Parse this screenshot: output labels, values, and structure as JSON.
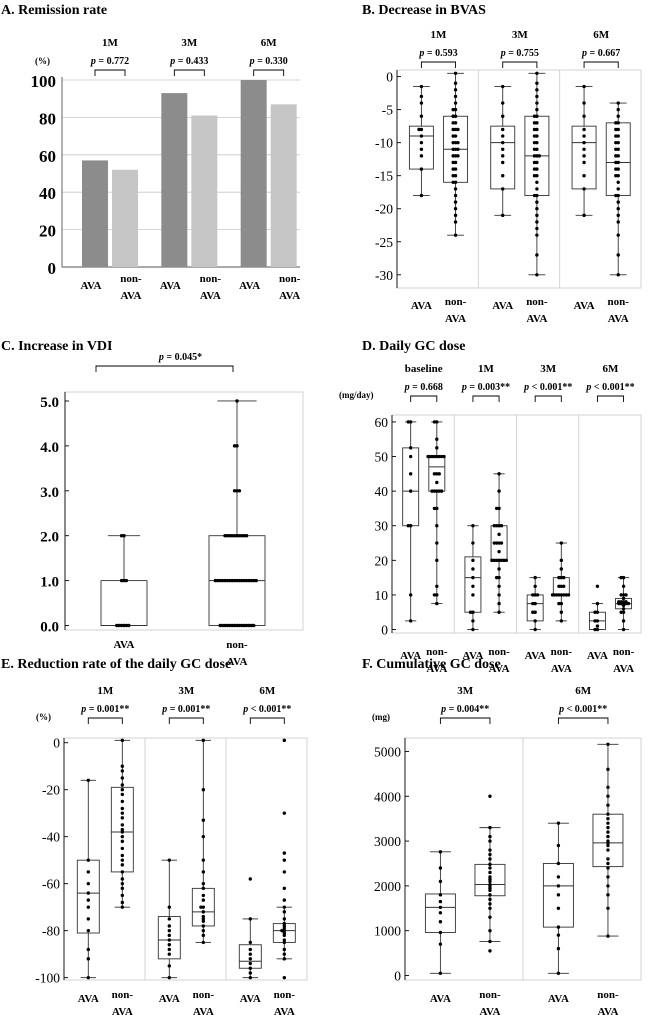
{
  "figure": {
    "panels": [
      {
        "id": "A",
        "title": "A. Remission rate",
        "unit": "(%)"
      },
      {
        "id": "B",
        "title": "B. Decrease in BVAS",
        "unit": ""
      },
      {
        "id": "C",
        "title": "C. Increase in VDI",
        "unit": ""
      },
      {
        "id": "D",
        "title": "D. Daily GC dose",
        "unit": "(mg/day)"
      },
      {
        "id": "E",
        "title": "E. Reduction rate of the daily GC dose",
        "unit": "(%)"
      },
      {
        "id": "F",
        "title": "F. Cumulative GC dose",
        "unit": "(mg)"
      }
    ],
    "colors": {
      "ava_bar": "#8c8c8c",
      "non_ava_bar": "#c6c6c6",
      "grid": "#c8c8c8",
      "frame": "#cfcfcf",
      "box": "#333333",
      "dot": "#000000"
    }
  },
  "chart_data": [
    {
      "id": "A",
      "type": "bar",
      "title": "A. Remission rate",
      "ylabel": "(%)",
      "ylim": [
        0,
        100
      ],
      "yticks": [
        "0",
        "20",
        "40",
        "60",
        "80",
        "100"
      ],
      "groups": [
        {
          "label": "1M",
          "p": "p = 0.772",
          "ava": 57,
          "non_ava": 52
        },
        {
          "label": "3M",
          "p": "p = 0.433",
          "ava": 93,
          "non_ava": 81
        },
        {
          "label": "6M",
          "p": "p = 0.330",
          "ava": 100,
          "non_ava": 87
        }
      ],
      "categories": [
        "AVA",
        "non-AVA"
      ]
    },
    {
      "id": "B",
      "type": "box",
      "title": "B. Decrease in BVAS",
      "ylim": [
        -32,
        1
      ],
      "yticks": [
        "0",
        "-5",
        "-10",
        "-15",
        "-20",
        "-25",
        "-30"
      ],
      "groups": [
        {
          "label": "1M",
          "p": "p = 0.593",
          "ava": {
            "min": -18,
            "q1": -14,
            "median": -9,
            "q3": -7.5,
            "max": -1.5,
            "points": [
              -1.5,
              -3,
              -4,
              -6,
              -8,
              -8,
              -9,
              -10,
              -11,
              -12,
              -14,
              -18
            ]
          },
          "non_ava": {
            "min": -24,
            "q1": -16,
            "median": -11,
            "q3": -6,
            "max": 0.5,
            "points": [
              0.5,
              -1,
              -2,
              -3,
              -4,
              -5,
              -5,
              -6,
              -6,
              -7,
              -7,
              -8,
              -8,
              -8,
              -9,
              -9,
              -10,
              -10,
              -10,
              -11,
              -11,
              -11,
              -12,
              -12,
              -12,
              -13,
              -13,
              -14,
              -14,
              -15,
              -15,
              -16,
              -16,
              -17,
              -18,
              -19,
              -20,
              -21,
              -22,
              -24
            ]
          }
        },
        {
          "label": "3M",
          "p": "p = 0.755",
          "ava": {
            "min": -21,
            "q1": -17,
            "median": -10,
            "q3": -7.5,
            "max": -1.5,
            "points": [
              -1.5,
              -4,
              -6,
              -8,
              -9,
              -10,
              -11,
              -12,
              -13,
              -15,
              -17,
              -21
            ]
          },
          "non_ava": {
            "min": -30,
            "q1": -18,
            "median": -12,
            "q3": -6,
            "max": 0.5,
            "points": [
              0.5,
              -1,
              -2,
              -3,
              -4,
              -5,
              -6,
              -6,
              -7,
              -7,
              -8,
              -8,
              -9,
              -9,
              -10,
              -10,
              -11,
              -11,
              -12,
              -12,
              -12,
              -13,
              -13,
              -14,
              -14,
              -15,
              -15,
              -16,
              -17,
              -18,
              -18,
              -19,
              -20,
              -21,
              -22,
              -23,
              -24,
              -27,
              -30
            ]
          }
        },
        {
          "label": "6M",
          "p": "p = 0.667",
          "ava": {
            "min": -21,
            "q1": -17,
            "median": -10,
            "q3": -7.5,
            "max": -1.5,
            "points": [
              -1.5,
              -4,
              -6,
              -8,
              -9,
              -10,
              -11,
              -12,
              -13,
              -15,
              -17,
              -21
            ]
          },
          "non_ava": {
            "min": -30,
            "q1": -18,
            "median": -13,
            "q3": -7,
            "max": -4,
            "points": [
              -4,
              -5,
              -6,
              -7,
              -7,
              -8,
              -8,
              -9,
              -9,
              -10,
              -10,
              -11,
              -11,
              -12,
              -12,
              -13,
              -13,
              -14,
              -14,
              -15,
              -15,
              -16,
              -17,
              -18,
              -18,
              -19,
              -20,
              -21,
              -22,
              -24,
              -27,
              -30
            ]
          }
        }
      ],
      "categories": [
        "AVA",
        "non-AVA"
      ]
    },
    {
      "id": "C",
      "type": "box",
      "title": "C. Increase in VDI",
      "ylim": [
        -0.1,
        5.2
      ],
      "yticks": [
        "0.0",
        "1.0",
        "2.0",
        "3.0",
        "4.0",
        "5.0"
      ],
      "p": "p = 0.045*",
      "ava": {
        "min": 0,
        "q1": 0,
        "median": 0,
        "q3": 1,
        "max": 2,
        "points": [
          0,
          0,
          0,
          0,
          0,
          0,
          1,
          1,
          1,
          2,
          2
        ]
      },
      "non_ava": {
        "min": 0,
        "q1": 0,
        "median": 1,
        "q3": 2,
        "max": 5,
        "points": [
          0,
          0,
          0,
          0,
          0,
          0,
          0,
          0,
          0,
          0,
          0,
          0,
          0,
          0,
          0,
          1,
          1,
          1,
          1,
          1,
          1,
          1,
          1,
          1,
          1,
          1,
          1,
          1,
          1,
          1,
          1,
          1,
          1,
          2,
          2,
          2,
          2,
          2,
          2,
          2,
          2,
          2,
          2,
          3,
          3,
          3,
          4,
          4,
          5
        ]
      },
      "categories": [
        "AVA",
        "non-AVA"
      ]
    },
    {
      "id": "D",
      "type": "box",
      "title": "D. Daily GC dose",
      "ylabel": "(mg/day)",
      "ylim": [
        -1,
        62
      ],
      "yticks": [
        "0",
        "10",
        "20",
        "30",
        "40",
        "50",
        "60"
      ],
      "groups": [
        {
          "label": "baseline",
          "p": "p = 0.668",
          "ava": {
            "min": 2.5,
            "q1": 30,
            "median": 40,
            "q3": 52.5,
            "max": 60,
            "points": [
              2.5,
              10,
              30,
              30,
              40,
              45,
              50,
              52.5,
              60,
              60
            ]
          },
          "non_ava": {
            "min": 7.5,
            "q1": 40,
            "median": 47,
            "q3": 50,
            "max": 60,
            "points": [
              7.5,
              10,
              10,
              12.5,
              20,
              25,
              30,
              35,
              35,
              40,
              40,
              40,
              40,
              40,
              42.5,
              45,
              45,
              45,
              50,
              50,
              50,
              50,
              50,
              50,
              50,
              50,
              52.5,
              55,
              60,
              60
            ]
          }
        },
        {
          "label": "1M",
          "p": "p = 0.003**",
          "ava": {
            "min": 0,
            "q1": 5,
            "median": 15,
            "q3": 21,
            "max": 30,
            "points": [
              0,
              2.5,
              5,
              5,
              10,
              12.5,
              15,
              17.5,
              20,
              25,
              30
            ]
          },
          "non_ava": {
            "min": 5,
            "q1": 20,
            "median": 20,
            "q3": 30,
            "max": 45,
            "points": [
              5,
              7.5,
              10,
              12.5,
              15,
              15,
              17.5,
              20,
              20,
              20,
              20,
              20,
              20,
              20,
              22.5,
              25,
              25,
              25,
              25,
              27.5,
              30,
              30,
              30,
              30,
              35,
              35,
              40,
              45
            ]
          }
        },
        {
          "label": "3M",
          "p": "p < 0.001**",
          "ava": {
            "min": 0,
            "q1": 2.5,
            "median": 7.5,
            "q3": 10,
            "max": 15,
            "points": [
              0,
              2.5,
              5,
              5,
              7.5,
              7.5,
              10,
              10,
              10,
              12.5,
              15
            ]
          },
          "non_ava": {
            "min": 2.5,
            "q1": 10,
            "median": 10,
            "q3": 15,
            "max": 25,
            "points": [
              2.5,
              5,
              7.5,
              7.5,
              10,
              10,
              10,
              10,
              10,
              10,
              10,
              10,
              12.5,
              12.5,
              12.5,
              15,
              15,
              15,
              17.5,
              20,
              25
            ]
          }
        },
        {
          "label": "6M",
          "p": "p < 0.001**",
          "ava": {
            "min": 0,
            "q1": 0,
            "median": 2.5,
            "q3": 5,
            "max": 7.5,
            "points": [
              0,
              0,
              1,
              2.5,
              2.5,
              5,
              5,
              7.5,
              12.5
            ]
          },
          "non_ava": {
            "min": 0,
            "q1": 6,
            "median": 7.5,
            "q3": 9,
            "max": 15,
            "points": [
              0,
              2.5,
              5,
              5,
              6,
              7,
              7.5,
              7.5,
              7.5,
              7.5,
              7.5,
              8,
              8,
              8,
              8,
              9,
              10,
              10,
              10,
              12.5,
              15,
              15
            ]
          }
        }
      ],
      "categories": [
        "AVA",
        "non-AVA"
      ]
    },
    {
      "id": "E",
      "type": "box",
      "title": "E. Reduction rate of the daily GC dose",
      "ylabel": "(%)",
      "ylim": [
        -101,
        2
      ],
      "yticks": [
        "0",
        "-20",
        "-40",
        "-60",
        "-80",
        "-100"
      ],
      "groups": [
        {
          "label": "1M",
          "p": "p = 0.001**",
          "ava": {
            "min": -100,
            "q1": -81,
            "median": -64,
            "q3": -50,
            "max": -16,
            "points": [
              -16,
              -50,
              -55,
              -60,
              -64,
              -67,
              -70,
              -75,
              -80,
              -88,
              -92,
              -100
            ]
          },
          "non_ava": {
            "min": -70,
            "q1": -55,
            "median": -38,
            "q3": -19,
            "max": 1,
            "points": [
              1,
              -10,
              -12,
              -15,
              -18,
              -20,
              -22,
              -25,
              -28,
              -30,
              -32,
              -35,
              -37,
              -38,
              -40,
              -42,
              -45,
              -48,
              -50,
              -52,
              -55,
              -58,
              -60,
              -62,
              -65,
              -68,
              -70
            ]
          }
        },
        {
          "label": "3M",
          "p": "p = 0.001**",
          "ava": {
            "min": -100,
            "q1": -92,
            "median": -84,
            "q3": -74,
            "max": -50,
            "points": [
              -50,
              -70,
              -75,
              -78,
              -80,
              -82,
              -84,
              -86,
              -88,
              -90,
              -95,
              -100
            ]
          },
          "non_ava": {
            "min": -85,
            "q1": -78,
            "median": -72,
            "q3": -62,
            "max": 1,
            "points": [
              1,
              -20,
              -33,
              -40,
              -50,
              -55,
              -60,
              -62,
              -65,
              -67,
              -70,
              -70,
              -72,
              -74,
              -75,
              -76,
              -78,
              -80,
              -82,
              -85
            ]
          }
        },
        {
          "label": "6M",
          "p": "p < 0.001**",
          "ava": {
            "min": -100,
            "q1": -96,
            "median": -93,
            "q3": -86,
            "max": -75,
            "points": [
              -58,
              -75,
              -85,
              -88,
              -90,
              -92,
              -94,
              -96,
              -98,
              -100
            ]
          },
          "non_ava": {
            "min": -92,
            "q1": -85,
            "median": -80,
            "q3": -77,
            "max": -70,
            "points": [
              1,
              -30,
              -47,
              -50,
              -55,
              -62,
              -67,
              -70,
              -72,
              -75,
              -77,
              -78,
              -79,
              -80,
              -80,
              -81,
              -82,
              -84,
              -85,
              -88,
              -90,
              -92,
              -100
            ]
          }
        }
      ],
      "categories": [
        "AVA",
        "non-AVA"
      ]
    },
    {
      "id": "F",
      "type": "box",
      "title": "F. Cumulative GC dose",
      "ylabel": "(mg)",
      "ylim": [
        -100,
        5300
      ],
      "yticks": [
        "0",
        "1000",
        "2000",
        "3000",
        "4000",
        "5000"
      ],
      "groups": [
        {
          "label": "3M",
          "p": "p = 0.004**",
          "ava": {
            "min": 50,
            "q1": 960,
            "median": 1520,
            "q3": 1820,
            "max": 2760,
            "points": [
              50,
              700,
              960,
              1200,
              1400,
              1520,
              1650,
              1800,
              2100,
              2400,
              2760
            ]
          },
          "non_ava": {
            "min": 760,
            "q1": 1780,
            "median": 2030,
            "q3": 2480,
            "max": 3300,
            "points": [
              550,
              760,
              1000,
              1300,
              1500,
              1600,
              1700,
              1800,
              1900,
              1950,
              2000,
              2030,
              2100,
              2150,
              2200,
              2300,
              2400,
              2480,
              2600,
              2700,
              2800,
              3000,
              3100,
              3300,
              4000
            ]
          }
        },
        {
          "label": "6M",
          "p": "p < 0.001**",
          "ava": {
            "min": 50,
            "q1": 1080,
            "median": 2000,
            "q3": 2500,
            "max": 3400,
            "points": [
              50,
              600,
              900,
              1080,
              1500,
              1800,
              2000,
              2200,
              2500,
              2900,
              3400
            ]
          },
          "non_ava": {
            "min": 880,
            "q1": 2430,
            "median": 2960,
            "q3": 3600,
            "max": 5160,
            "points": [
              880,
              1500,
              1800,
              2000,
              2200,
              2400,
              2500,
              2600,
              2800,
              2900,
              2960,
              3000,
              3100,
              3200,
              3300,
              3400,
              3500,
              3600,
              3800,
              4000,
              4200,
              4600,
              5160
            ]
          }
        }
      ],
      "categories": [
        "AVA",
        "non-AVA"
      ]
    }
  ]
}
